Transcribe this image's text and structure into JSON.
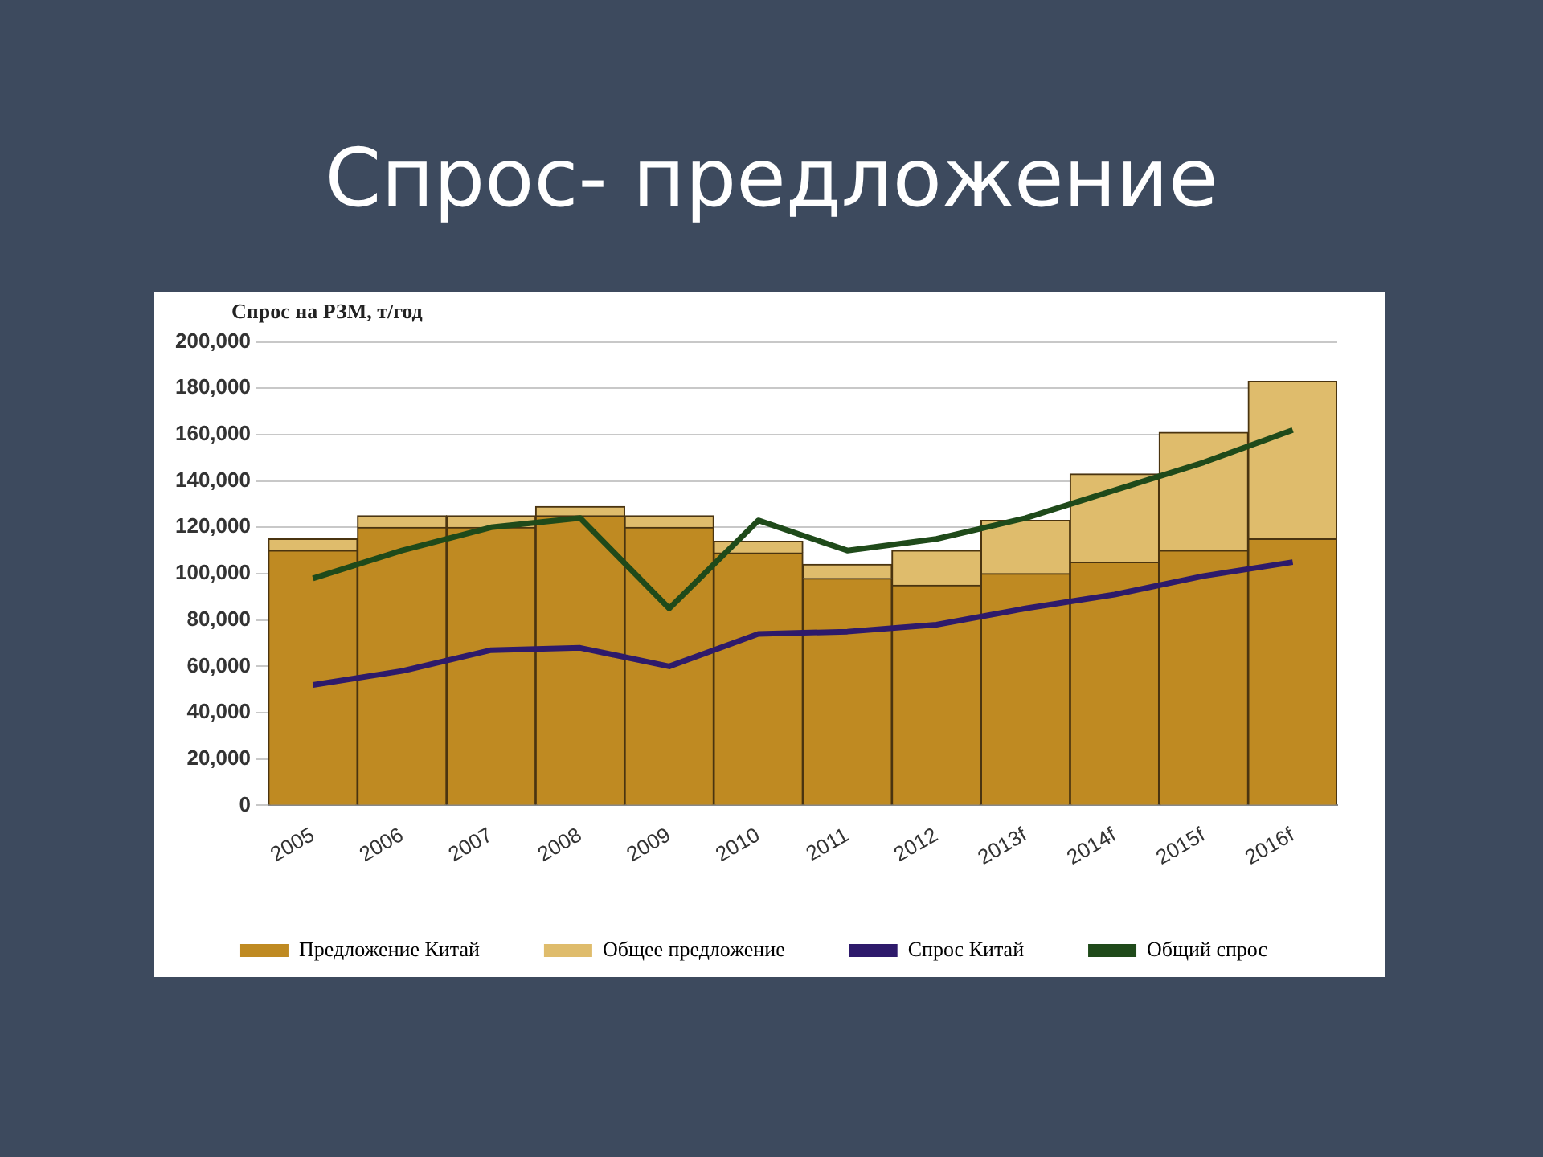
{
  "chart_data": {
    "type": "bar",
    "title": "Спрос- предложение",
    "ylabel": "Спрос на РЗМ, т/год",
    "categories": [
      "2005",
      "2006",
      "2007",
      "2008",
      "2009",
      "2010",
      "2011",
      "2012",
      "2013f",
      "2014f",
      "2015f",
      "2016f"
    ],
    "stacked": true,
    "series": [
      {
        "name": "Предложение Китай",
        "color": "#bf8a22",
        "values": [
          110000,
          120000,
          120000,
          125000,
          120000,
          109000,
          98000,
          95000,
          100000,
          105000,
          110000,
          115000
        ]
      },
      {
        "name": "Общее предложение",
        "color": "#dfbc6c",
        "values": [
          5000,
          5000,
          5000,
          4000,
          5000,
          5000,
          6000,
          15000,
          23000,
          38000,
          51000,
          68000
        ]
      },
      {
        "name": "Спрос Китай",
        "type": "line",
        "color": "#2e1a6b",
        "values": [
          52000,
          58000,
          67000,
          68000,
          60000,
          74000,
          75000,
          78000,
          85000,
          91000,
          99000,
          105000
        ]
      },
      {
        "name": "Общий спрос",
        "type": "line",
        "color": "#1f4a1a",
        "values": [
          98000,
          110000,
          120000,
          124000,
          85000,
          123000,
          110000,
          115000,
          124000,
          136000,
          148000,
          162000
        ]
      }
    ],
    "ylim": [
      0,
      200000
    ],
    "yticks": [
      0,
      {
        "value": 20000,
        "label": "20,000"
      },
      {
        "value": 40000,
        "label": "40,000"
      },
      {
        "value": 60000,
        "label": "60,000"
      },
      {
        "value": 80000,
        "label": "80,000"
      },
      {
        "value": 100000,
        "label": "100,000"
      },
      {
        "value": 120000,
        "label": "120,000"
      },
      {
        "value": 140000,
        "label": "140,000"
      },
      {
        "value": 160000,
        "label": "160,000"
      },
      {
        "value": 180000,
        "label": "180,000"
      },
      {
        "value": 200000,
        "label": "200,000"
      }
    ],
    "grid": "y",
    "legend": "bottom",
    "marker": "none"
  }
}
